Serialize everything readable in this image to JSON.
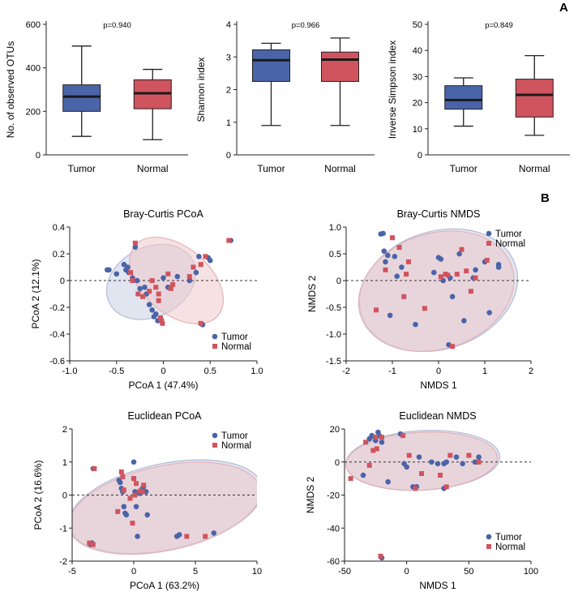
{
  "panel_labels": [
    "A",
    "B"
  ],
  "colors": {
    "tumor": "#4a64a8",
    "normal": "#d0545d",
    "median": "#1a1a1a",
    "tumor_ellipse": "#c9cfe4",
    "normal_ellipse": "#efc8cc"
  },
  "chart_data": [
    {
      "type": "box",
      "ylabel": "No. of observed OTUs",
      "pvalue": "p=0.940",
      "categories": [
        "Tumor",
        "Normal"
      ],
      "ylim": [
        0,
        600
      ],
      "yticks": [
        0,
        200,
        400,
        600
      ],
      "boxes": [
        {
          "min": 85,
          "q1": 200,
          "median": 268,
          "q3": 322,
          "max": 500
        },
        {
          "min": 70,
          "q1": 212,
          "median": 283,
          "q3": 345,
          "max": 393
        }
      ]
    },
    {
      "type": "box",
      "ylabel": "Shannon index",
      "pvalue": "p=0.966",
      "categories": [
        "Tumor",
        "Normal"
      ],
      "ylim": [
        0,
        4
      ],
      "yticks": [
        0,
        1,
        2,
        3,
        4
      ],
      "boxes": [
        {
          "min": 0.9,
          "q1": 2.25,
          "median": 2.9,
          "q3": 3.22,
          "max": 3.42
        },
        {
          "min": 0.9,
          "q1": 2.25,
          "median": 2.92,
          "q3": 3.15,
          "max": 3.58
        }
      ]
    },
    {
      "type": "box",
      "ylabel": "Inverse Simpson index",
      "pvalue": "p=0.849",
      "categories": [
        "Tumor",
        "Normal"
      ],
      "ylim": [
        0,
        50
      ],
      "yticks": [
        0,
        10,
        20,
        30,
        40,
        50
      ],
      "boxes": [
        {
          "min": 11,
          "q1": 17.5,
          "median": 21,
          "q3": 26.5,
          "max": 29.5
        },
        {
          "min": 7.5,
          "q1": 14.5,
          "median": 23,
          "q3": 29,
          "max": 38
        }
      ]
    },
    {
      "type": "scatter",
      "title": "Bray-Curtis PCoA",
      "xlabel": "PCoA 1 (47.4%)",
      "ylabel": "PCoA 2 (12.1%)",
      "xlim": [
        -1.0,
        1.0
      ],
      "ylim": [
        -0.6,
        0.4
      ],
      "xticks": [
        "-1.0",
        "-0.5",
        "0",
        "0.5",
        "1.0"
      ],
      "yticks": [
        "-0.6",
        "-0.4",
        "-0.2",
        "0",
        "0.2",
        "0.4"
      ],
      "legend": [
        "Tumor",
        "Normal"
      ],
      "legend_position": "bottom-right",
      "ellipses": [
        {
          "group": "Tumor",
          "cx": -0.13,
          "cy": -0.01,
          "rx": 0.5,
          "ry": 0.26,
          "angle": -27
        },
        {
          "group": "Normal",
          "cx": 0.14,
          "cy": 0.0,
          "rx": 0.58,
          "ry": 0.25,
          "angle": 40
        }
      ],
      "series": [
        {
          "name": "Tumor",
          "points": [
            [
              -0.6,
              0.08
            ],
            [
              -0.58,
              0.08
            ],
            [
              -0.5,
              0.05
            ],
            [
              -0.42,
              0.12
            ],
            [
              -0.4,
              0.08
            ],
            [
              -0.38,
              0.1
            ],
            [
              -0.37,
              0.06
            ],
            [
              -0.33,
              0.02
            ],
            [
              -0.3,
              0.25
            ],
            [
              -0.28,
              0.0
            ],
            [
              -0.25,
              -0.06
            ],
            [
              -0.2,
              -0.05
            ],
            [
              -0.18,
              -0.1
            ],
            [
              -0.15,
              -0.18
            ],
            [
              -0.12,
              -0.22
            ],
            [
              -0.1,
              -0.27
            ],
            [
              -0.08,
              -0.25
            ],
            [
              -0.06,
              -0.3
            ],
            [
              0.0,
              0.02
            ],
            [
              0.05,
              -0.05
            ],
            [
              0.15,
              0.03
            ],
            [
              0.28,
              0.0
            ],
            [
              0.35,
              0.06
            ],
            [
              0.38,
              0.18
            ],
            [
              0.48,
              0.17
            ],
            [
              0.5,
              0.15
            ],
            [
              0.42,
              -0.33
            ],
            [
              0.72,
              0.3
            ]
          ]
        },
        {
          "name": "Normal",
          "points": [
            [
              -0.35,
              0.06
            ],
            [
              -0.33,
              0.0
            ],
            [
              -0.3,
              0.28
            ],
            [
              -0.27,
              -0.1
            ],
            [
              -0.22,
              -0.12
            ],
            [
              -0.15,
              -0.08
            ],
            [
              -0.12,
              0.0
            ],
            [
              -0.08,
              -0.05
            ],
            [
              -0.05,
              -0.1
            ],
            [
              -0.05,
              -0.15
            ],
            [
              -0.02,
              -0.3
            ],
            [
              -0.01,
              -0.32
            ],
            [
              0.05,
              0.05
            ],
            [
              0.1,
              -0.03
            ],
            [
              0.28,
              0.03
            ],
            [
              0.32,
              0.1
            ],
            [
              0.4,
              0.12
            ],
            [
              0.45,
              0.18
            ],
            [
              0.4,
              -0.32
            ],
            [
              0.7,
              0.3
            ],
            [
              -0.03,
              -0.28
            ],
            [
              0.08,
              -0.06
            ]
          ]
        }
      ]
    },
    {
      "type": "scatter",
      "title": "Bray-Curtis NMDS",
      "xlabel": "NMDS 1",
      "ylabel": "NMDS 2",
      "xlim": [
        -2,
        2
      ],
      "ylim": [
        -1.5,
        1.0
      ],
      "xticks": [
        "-2",
        "-1",
        "0",
        "1",
        "2"
      ],
      "yticks": [
        "-1.5",
        "-1.0",
        "-0.5",
        "0",
        "0.5",
        "1.0"
      ],
      "legend": [
        "Tumor",
        "Normal"
      ],
      "legend_position": "top-right",
      "ellipses": [
        {
          "group": "Tumor",
          "cx": -0.0,
          "cy": -0.18,
          "rx": 1.75,
          "ry": 1.1,
          "angle": -18
        },
        {
          "group": "Normal",
          "cx": -0.05,
          "cy": -0.2,
          "rx": 1.72,
          "ry": 1.08,
          "angle": -18
        }
      ],
      "series": [
        {
          "name": "Tumor",
          "points": [
            [
              -1.25,
              0.87
            ],
            [
              -1.2,
              0.88
            ],
            [
              -1.18,
              0.55
            ],
            [
              -1.15,
              0.35
            ],
            [
              -1.1,
              0.47
            ],
            [
              -1.05,
              -0.65
            ],
            [
              -0.95,
              0.45
            ],
            [
              -0.9,
              0.08
            ],
            [
              -0.8,
              0.25
            ],
            [
              -0.5,
              -0.82
            ],
            [
              -0.1,
              0.15
            ],
            [
              0.0,
              0.43
            ],
            [
              0.05,
              0.4
            ],
            [
              0.1,
              0.0
            ],
            [
              0.25,
              0.05
            ],
            [
              0.3,
              -0.3
            ],
            [
              0.45,
              0.5
            ],
            [
              0.55,
              -0.75
            ],
            [
              0.75,
              0.05
            ],
            [
              0.8,
              0.2
            ],
            [
              1.0,
              0.35
            ],
            [
              1.1,
              -0.6
            ],
            [
              1.3,
              0.3
            ],
            [
              1.3,
              0.25
            ],
            [
              0.22,
              -1.2
            ]
          ]
        },
        {
          "name": "Normal",
          "points": [
            [
              -1.35,
              -0.55
            ],
            [
              -1.15,
              0.2
            ],
            [
              -1.0,
              0.8
            ],
            [
              -0.85,
              0.62
            ],
            [
              -0.75,
              -0.3
            ],
            [
              -0.7,
              0.12
            ],
            [
              -0.3,
              -0.52
            ],
            [
              0.05,
              0.07
            ],
            [
              0.15,
              0.12
            ],
            [
              0.2,
              0.1
            ],
            [
              0.4,
              0.12
            ],
            [
              0.5,
              0.58
            ],
            [
              0.6,
              0.18
            ],
            [
              0.7,
              -0.2
            ],
            [
              0.8,
              0.05
            ],
            [
              1.05,
              0.38
            ],
            [
              0.3,
              -1.23
            ],
            [
              -0.65,
              0.35
            ]
          ]
        }
      ]
    },
    {
      "type": "scatter",
      "title": "Euclidean PCoA",
      "xlabel": "PCoA 1 (63.2%)",
      "ylabel": "PCoA 2 (16.6%)",
      "xlim": [
        -5,
        10
      ],
      "ylim": [
        -2,
        2
      ],
      "xticks": [
        "-5",
        "0",
        "5",
        "10"
      ],
      "yticks": [
        "-2",
        "-1",
        "0",
        "1",
        "2"
      ],
      "legend": [
        "Tumor",
        "Normal"
      ],
      "legend_position": "top-right",
      "ellipses": [
        {
          "group": "Tumor",
          "cx": 2.6,
          "cy": -0.35,
          "rx": 8.0,
          "ry": 1.3,
          "angle": -12
        },
        {
          "group": "Normal",
          "cx": 2.5,
          "cy": -0.4,
          "rx": 7.9,
          "ry": 1.28,
          "angle": -12
        }
      ],
      "series": [
        {
          "name": "Tumor",
          "points": [
            [
              -3.3,
              0.8
            ],
            [
              -3.5,
              -1.5
            ],
            [
              -3.4,
              -1.45
            ],
            [
              -1.2,
              0.45
            ],
            [
              -1.1,
              0.38
            ],
            [
              -1.0,
              0.2
            ],
            [
              -0.9,
              0.1
            ],
            [
              -0.8,
              -0.35
            ],
            [
              -0.7,
              -0.55
            ],
            [
              -0.6,
              -0.6
            ],
            [
              0.0,
              1.0
            ],
            [
              0.0,
              0.5
            ],
            [
              0.1,
              0.1
            ],
            [
              0.2,
              -0.35
            ],
            [
              0.3,
              -1.25
            ],
            [
              0.5,
              0.05
            ],
            [
              0.7,
              0.2
            ],
            [
              0.8,
              0.25
            ],
            [
              1.0,
              0.1
            ],
            [
              1.1,
              -0.6
            ],
            [
              3.5,
              -1.25
            ],
            [
              3.7,
              -1.2
            ],
            [
              6.5,
              -1.15
            ]
          ]
        },
        {
          "name": "Normal",
          "points": [
            [
              -3.2,
              0.8
            ],
            [
              -3.6,
              -1.45
            ],
            [
              -3.3,
              -1.5
            ],
            [
              -1.3,
              -0.5
            ],
            [
              -1.0,
              0.7
            ],
            [
              -0.9,
              0.55
            ],
            [
              -0.8,
              0.15
            ],
            [
              -0.3,
              -0.1
            ],
            [
              -0.1,
              -0.85
            ],
            [
              0.0,
              0.5
            ],
            [
              0.1,
              0.0
            ],
            [
              0.2,
              0.35
            ],
            [
              0.5,
              0.12
            ],
            [
              0.7,
              0.1
            ],
            [
              0.8,
              0.3
            ],
            [
              4.3,
              -1.25
            ],
            [
              5.8,
              -1.25
            ]
          ]
        }
      ]
    },
    {
      "type": "scatter",
      "title": "Euclidean NMDS",
      "xlabel": "NMDS 1",
      "ylabel": "NMDS 2",
      "xlim": [
        -50,
        100
      ],
      "ylim": [
        -60,
        20
      ],
      "xticks": [
        "-50",
        "0",
        "50",
        "100"
      ],
      "yticks": [
        "-60",
        "-40",
        "-20",
        "0",
        "20"
      ],
      "legend": [
        "Tumor",
        "Normal"
      ],
      "legend_position": "bottom-right",
      "ellipses": [
        {
          "group": "Tumor",
          "cx": 13,
          "cy": 1,
          "rx": 62,
          "ry": 18,
          "angle": -3
        },
        {
          "group": "Normal",
          "cx": 12,
          "cy": 0.5,
          "rx": 61,
          "ry": 17.5,
          "angle": -3
        }
      ],
      "series": [
        {
          "name": "Tumor",
          "points": [
            [
              -35,
              -8
            ],
            [
              -30,
              14
            ],
            [
              -28,
              16
            ],
            [
              -26,
              15
            ],
            [
              -25,
              13
            ],
            [
              -23,
              18
            ],
            [
              -22,
              16
            ],
            [
              -20,
              12
            ],
            [
              -15,
              -12
            ],
            [
              -5,
              17
            ],
            [
              -2,
              -1
            ],
            [
              0,
              -3
            ],
            [
              5,
              -15
            ],
            [
              8,
              -15
            ],
            [
              10,
              3
            ],
            [
              20,
              0
            ],
            [
              25,
              -1
            ],
            [
              30,
              -16
            ],
            [
              30,
              -1
            ],
            [
              32,
              0
            ],
            [
              40,
              3
            ],
            [
              45,
              -1
            ],
            [
              55,
              0
            ],
            [
              57,
              0
            ],
            [
              58,
              3
            ],
            [
              -20,
              -58
            ]
          ]
        },
        {
          "name": "Normal",
          "points": [
            [
              -45,
              -10
            ],
            [
              -33,
              12
            ],
            [
              -30,
              -2
            ],
            [
              -27,
              7
            ],
            [
              -25,
              15
            ],
            [
              -24,
              8
            ],
            [
              -20,
              15
            ],
            [
              -3,
              16
            ],
            [
              2,
              4
            ],
            [
              7,
              -16
            ],
            [
              12,
              -7
            ],
            [
              27,
              -8
            ],
            [
              32,
              -15
            ],
            [
              35,
              4
            ],
            [
              50,
              4
            ],
            [
              58,
              0
            ],
            [
              -21,
              -57
            ]
          ]
        }
      ]
    }
  ]
}
